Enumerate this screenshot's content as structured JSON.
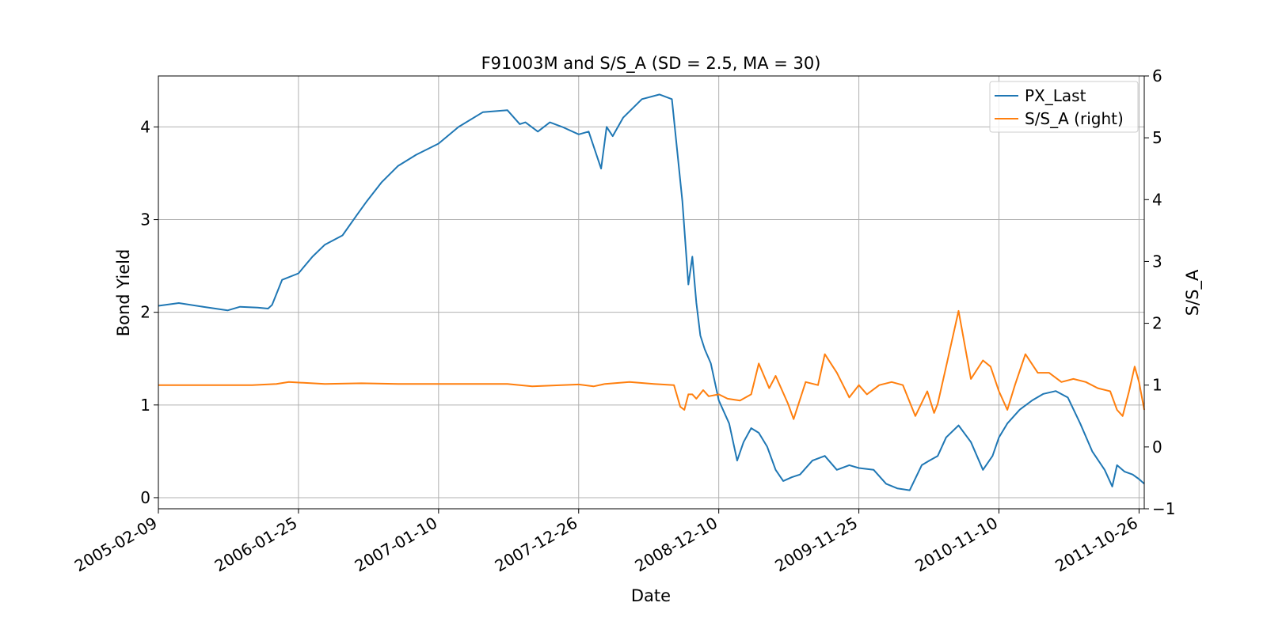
{
  "chart_data": {
    "type": "line",
    "title": "F91003M and S/S_A (SD = 2.5, MA = 30)",
    "xlabel": "Date",
    "ylabel": "Bond Yield",
    "y2label": "S/S_A",
    "xlim": [
      "2005-02-09",
      "2011-11-08"
    ],
    "ylim": [
      -0.12,
      4.55
    ],
    "y2lim": [
      -1,
      6
    ],
    "x_ticks": [
      "2005-02-09",
      "2006-01-25",
      "2007-01-10",
      "2007-12-26",
      "2008-12-10",
      "2009-11-25",
      "2010-11-10",
      "2011-10-26"
    ],
    "y_ticks": [
      "0",
      "1",
      "2",
      "3",
      "4"
    ],
    "y2_ticks": [
      "−1",
      "0",
      "1",
      "2",
      "3",
      "4",
      "5",
      "6"
    ],
    "grid": true,
    "legend_position": "top-right",
    "colors": {
      "PX_Last": "#1f77b4",
      "S/S_A": "#ff7f0e"
    },
    "legend": [
      "PX_Last",
      "S/S_A (right)"
    ],
    "series": [
      {
        "name": "PX_Last",
        "axis": "left",
        "x": [
          "2005-02-09",
          "2005-04-01",
          "2005-06-01",
          "2005-08-01",
          "2005-09-01",
          "2005-10-15",
          "2005-11-10",
          "2005-11-20",
          "2005-12-15",
          "2006-01-25",
          "2006-03-01",
          "2006-04-01",
          "2006-05-15",
          "2006-06-20",
          "2006-07-15",
          "2006-08-20",
          "2006-10-01",
          "2006-11-15",
          "2007-01-10",
          "2007-03-01",
          "2007-05-01",
          "2007-07-01",
          "2007-08-01",
          "2007-08-15",
          "2007-09-15",
          "2007-10-15",
          "2007-11-15",
          "2007-12-26",
          "2008-01-20",
          "2008-02-20",
          "2008-03-05",
          "2008-03-20",
          "2008-04-15",
          "2008-06-01",
          "2008-07-15",
          "2008-08-15",
          "2008-09-10",
          "2008-09-25",
          "2008-10-05",
          "2008-10-15",
          "2008-10-25",
          "2008-11-05",
          "2008-11-20",
          "2008-12-10",
          "2009-01-05",
          "2009-01-25",
          "2009-02-10",
          "2009-03-01",
          "2009-03-20",
          "2009-04-10",
          "2009-05-01",
          "2009-05-20",
          "2009-06-10",
          "2009-07-01",
          "2009-08-01",
          "2009-09-01",
          "2009-10-01",
          "2009-11-01",
          "2009-11-25",
          "2010-01-01",
          "2010-02-01",
          "2010-03-01",
          "2010-04-01",
          "2010-05-01",
          "2010-05-20",
          "2010-06-10",
          "2010-07-01",
          "2010-08-01",
          "2010-09-01",
          "2010-10-01",
          "2010-10-25",
          "2010-11-10",
          "2010-12-01",
          "2011-01-01",
          "2011-02-01",
          "2011-03-01",
          "2011-04-01",
          "2011-05-01",
          "2011-06-01",
          "2011-07-01",
          "2011-08-01",
          "2011-08-20",
          "2011-09-01",
          "2011-09-20",
          "2011-10-10",
          "2011-10-26",
          "2011-11-08"
        ],
        "y": [
          2.07,
          2.1,
          2.06,
          2.02,
          2.06,
          2.05,
          2.04,
          2.08,
          2.35,
          2.42,
          2.6,
          2.73,
          2.83,
          3.05,
          3.2,
          3.4,
          3.58,
          3.7,
          3.82,
          4.0,
          4.16,
          4.18,
          4.03,
          4.05,
          3.95,
          4.05,
          4.0,
          3.92,
          3.95,
          3.55,
          4.0,
          3.9,
          4.1,
          4.3,
          4.35,
          4.3,
          3.2,
          2.3,
          2.6,
          2.1,
          1.75,
          1.6,
          1.45,
          1.05,
          0.8,
          0.4,
          0.6,
          0.75,
          0.7,
          0.55,
          0.3,
          0.18,
          0.22,
          0.25,
          0.4,
          0.45,
          0.3,
          0.35,
          0.32,
          0.3,
          0.15,
          0.1,
          0.08,
          0.35,
          0.4,
          0.45,
          0.65,
          0.78,
          0.6,
          0.3,
          0.45,
          0.65,
          0.8,
          0.95,
          1.05,
          1.12,
          1.15,
          1.08,
          0.8,
          0.5,
          0.3,
          0.12,
          0.35,
          0.28,
          0.25,
          0.2,
          0.15
        ]
      },
      {
        "name": "S/S_A (right)",
        "axis": "right",
        "x": [
          "2005-02-09",
          "2005-06-01",
          "2005-10-01",
          "2005-12-01",
          "2006-01-01",
          "2006-04-01",
          "2006-07-01",
          "2006-10-01",
          "2007-01-10",
          "2007-04-01",
          "2007-07-01",
          "2007-09-01",
          "2007-12-26",
          "2008-02-01",
          "2008-03-01",
          "2008-05-01",
          "2008-07-01",
          "2008-08-20",
          "2008-09-05",
          "2008-09-15",
          "2008-09-25",
          "2008-10-05",
          "2008-10-15",
          "2008-11-01",
          "2008-11-15",
          "2008-12-10",
          "2009-01-01",
          "2009-02-01",
          "2009-03-01",
          "2009-03-20",
          "2009-04-15",
          "2009-05-01",
          "2009-06-01",
          "2009-06-15",
          "2009-07-15",
          "2009-08-15",
          "2009-09-01",
          "2009-10-01",
          "2009-11-01",
          "2009-11-25",
          "2009-12-15",
          "2010-01-15",
          "2010-02-15",
          "2010-03-15",
          "2010-04-15",
          "2010-05-15",
          "2010-06-01",
          "2010-06-10",
          "2010-07-01",
          "2010-08-01",
          "2010-09-01",
          "2010-10-01",
          "2010-10-20",
          "2010-11-10",
          "2010-12-01",
          "2010-12-20",
          "2011-01-15",
          "2011-02-15",
          "2011-03-15",
          "2011-04-15",
          "2011-05-15",
          "2011-06-15",
          "2011-07-15",
          "2011-08-15",
          "2011-09-01",
          "2011-09-15",
          "2011-10-01",
          "2011-10-15",
          "2011-10-26",
          "2011-11-08"
        ],
        "y": [
          1.0,
          1.0,
          1.0,
          1.02,
          1.05,
          1.02,
          1.03,
          1.02,
          1.02,
          1.02,
          1.02,
          0.98,
          1.01,
          0.98,
          1.02,
          1.05,
          1.02,
          1.0,
          0.65,
          0.6,
          0.85,
          0.85,
          0.78,
          0.92,
          0.82,
          0.85,
          0.78,
          0.75,
          0.85,
          1.35,
          0.95,
          1.15,
          0.7,
          0.45,
          1.05,
          1.0,
          1.5,
          1.2,
          0.8,
          1.0,
          0.85,
          1.0,
          1.05,
          1.0,
          0.5,
          0.9,
          0.55,
          0.7,
          1.3,
          2.2,
          1.1,
          1.4,
          1.3,
          0.9,
          0.6,
          1.0,
          1.5,
          1.2,
          1.2,
          1.05,
          1.1,
          1.05,
          0.95,
          0.9,
          0.6,
          0.5,
          0.9,
          1.3,
          1.05,
          0.6
        ]
      }
    ]
  }
}
